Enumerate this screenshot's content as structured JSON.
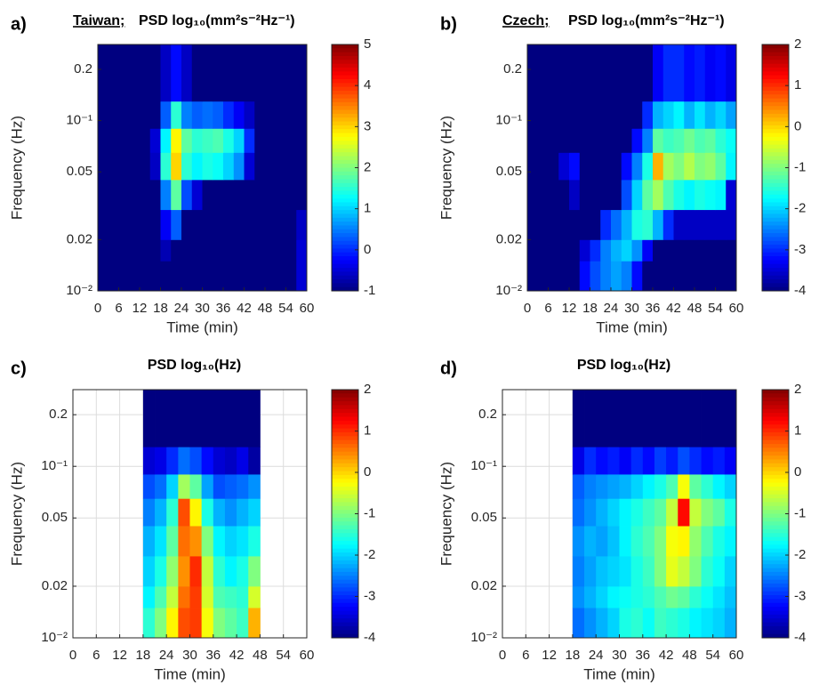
{
  "chart_data": [
    {
      "type": "heatmap",
      "panel_label": "a)",
      "site": "Taiwan;",
      "title": "PSD log₁₀(mm²s⁻²Hz⁻¹)",
      "xlabel": "Time (min)",
      "ylabel": "Frequency (Hz)",
      "xlim": [
        0,
        60
      ],
      "xticks": [
        0,
        6,
        12,
        18,
        24,
        30,
        36,
        42,
        48,
        54,
        60
      ],
      "ylim": [
        0.01,
        0.28
      ],
      "ylog": true,
      "yticks": [
        {
          "value": 0.01,
          "label": "10⁻²"
        },
        0.02,
        0.05,
        {
          "value": 0.1,
          "label": "10⁻¹"
        },
        0.2
      ],
      "grid": false,
      "colormap": "jet",
      "clim": [
        -1,
        5
      ],
      "cticks": [
        -1,
        0,
        1,
        2,
        3,
        4,
        5
      ],
      "xbins": [
        0,
        3,
        6,
        9,
        12,
        15,
        18,
        21,
        24,
        27,
        30,
        33,
        36,
        39,
        42,
        45,
        48,
        51,
        54,
        57,
        60
      ],
      "ybins": [
        0.01,
        0.015,
        0.02,
        0.03,
        0.045,
        0.065,
        0.09,
        0.13,
        0.28
      ],
      "z": [
        [
          -1,
          -1,
          -1,
          -1,
          -1,
          -1,
          -1,
          -1,
          -1,
          -1,
          -1,
          -1,
          -1,
          -1,
          -1,
          -1,
          -1,
          -1,
          -1,
          -0.5
        ],
        [
          -1,
          -1,
          -1,
          -1,
          -1,
          -1,
          -0.7,
          -1,
          -1,
          -1,
          -1,
          -1,
          -1,
          -1,
          -1,
          -1,
          -1,
          -1,
          -1,
          -0.5
        ],
        [
          -1,
          -1,
          -1,
          -1,
          -1,
          -1,
          -0.3,
          0.3,
          -1,
          -1,
          -1,
          -1,
          -1,
          -1,
          -1,
          -1,
          -1,
          -1,
          -1,
          -0.6
        ],
        [
          -1,
          -1,
          -1,
          -1,
          -1,
          -1,
          0.5,
          1.8,
          0.2,
          -0.5,
          -1,
          -1,
          -1,
          -1,
          -1,
          -1,
          -1,
          -1,
          -1,
          -1
        ],
        [
          -1,
          -1,
          -1,
          -1,
          -1,
          -0.6,
          1.5,
          3.0,
          1.5,
          1.2,
          1.4,
          1.3,
          1.0,
          0.6,
          -0.5,
          -1,
          -1,
          -1,
          -1,
          -1
        ],
        [
          -1,
          -1,
          -1,
          -1,
          -1,
          -0.5,
          1.2,
          2.8,
          1.8,
          1.5,
          1.6,
          1.7,
          1.4,
          1.0,
          0,
          -1,
          -1,
          -1,
          -1,
          -1
        ],
        [
          -1,
          -1,
          -1,
          -1,
          -1,
          -1,
          0.3,
          1.5,
          0.5,
          0.3,
          0.4,
          0.3,
          0,
          -0.3,
          -0.6,
          -1,
          -1,
          -1,
          -1,
          -1
        ],
        [
          -1,
          -1,
          -1,
          -1,
          -1,
          -1,
          -0.6,
          -0.2,
          -0.6,
          -1,
          -1,
          -1,
          -1,
          -1,
          -1,
          -1,
          -1,
          -1,
          -1,
          -1
        ]
      ]
    },
    {
      "type": "heatmap",
      "panel_label": "b)",
      "site": "Czech;",
      "title": "PSD log₁₀(mm²s⁻²Hz⁻¹)",
      "xlabel": "Time (min)",
      "ylabel": "Frequency (Hz)",
      "xlim": [
        0,
        60
      ],
      "xticks": [
        0,
        6,
        12,
        18,
        24,
        30,
        36,
        42,
        48,
        54,
        60
      ],
      "ylim": [
        0.01,
        0.28
      ],
      "ylog": true,
      "yticks": [
        {
          "value": 0.01,
          "label": "10⁻²"
        },
        0.02,
        0.05,
        {
          "value": 0.1,
          "label": "10⁻¹"
        },
        0.2
      ],
      "grid": false,
      "colormap": "jet",
      "clim": [
        -4,
        2
      ],
      "cticks": [
        -4,
        -3,
        -2,
        -1,
        0,
        1,
        2
      ],
      "xbins": [
        0,
        3,
        6,
        9,
        12,
        15,
        18,
        21,
        24,
        27,
        30,
        33,
        36,
        39,
        42,
        45,
        48,
        51,
        54,
        57,
        60
      ],
      "ybins": [
        0.01,
        0.015,
        0.02,
        0.03,
        0.045,
        0.065,
        0.09,
        0.13,
        0.28
      ],
      "z": [
        [
          -4,
          -4,
          -4,
          -4,
          -4,
          -3.2,
          -2.8,
          -2.5,
          -2.3,
          -2.5,
          -3.2,
          -4,
          -4,
          -4,
          -4,
          -4,
          -4,
          -4,
          -4,
          -4
        ],
        [
          -4,
          -4,
          -4,
          -4,
          -4,
          -3.5,
          -3,
          -2.5,
          -2.2,
          -2,
          -2.4,
          -3.3,
          -4,
          -4,
          -4,
          -4,
          -4,
          -4,
          -4,
          -4
        ],
        [
          -4,
          -4,
          -4,
          -4,
          -4,
          -4,
          -4,
          -3,
          -2.6,
          -2.2,
          -1.6,
          -1.5,
          -2.2,
          -3,
          -3.6,
          -3.6,
          -3.6,
          -3.6,
          -3.6,
          -3.6
        ],
        [
          -4,
          -4,
          -4,
          -4,
          -3.6,
          -4,
          -4,
          -4,
          -4,
          -2.8,
          -2,
          -1.2,
          -0.8,
          -1.3,
          -1.6,
          -1.8,
          -1.6,
          -1.7,
          -1.8,
          -3.5
        ],
        [
          -4,
          -4,
          -4,
          -3.5,
          -3.2,
          -4,
          -4,
          -4,
          -4,
          -3.2,
          -2.5,
          -1.6,
          0.2,
          -0.8,
          -1,
          -0.7,
          -1,
          -0.9,
          -1.2,
          -1.8
        ],
        [
          -4,
          -4,
          -4,
          -4,
          -4,
          -4,
          -4,
          -4,
          -4,
          -4,
          -3.2,
          -2.5,
          -1.2,
          -1.4,
          -1.3,
          -1.1,
          -1.3,
          -1.2,
          -1.5,
          -1.7
        ],
        [
          -4,
          -4,
          -4,
          -4,
          -4,
          -4,
          -4,
          -4,
          -4,
          -4,
          -4,
          -3,
          -2.2,
          -2,
          -1.8,
          -2.2,
          -1.9,
          -2.2,
          -2,
          -2.3
        ],
        [
          -4,
          -4,
          -4,
          -4,
          -4,
          -4,
          -4,
          -4,
          -4,
          -4,
          -4,
          -4,
          -3.3,
          -3,
          -3,
          -3.2,
          -3.1,
          -3.3,
          -3.2,
          -3.4
        ]
      ]
    },
    {
      "type": "heatmap",
      "panel_label": "c)",
      "title": "PSD log₁₀(Hz)",
      "xlabel": "Time (min)",
      "ylabel": "Frequency (Hz)",
      "xlim": [
        0,
        60
      ],
      "xticks": [
        0,
        6,
        12,
        18,
        24,
        30,
        36,
        42,
        48,
        54,
        60
      ],
      "ylim": [
        0.01,
        0.28
      ],
      "ylog": true,
      "yticks": [
        {
          "value": 0.01,
          "label": "10⁻²"
        },
        0.02,
        0.05,
        {
          "value": 0.1,
          "label": "10⁻¹"
        },
        0.2
      ],
      "grid": true,
      "colormap": "jet",
      "clim": [
        -4,
        2
      ],
      "cticks": [
        -4,
        -3,
        -2,
        -1,
        0,
        1,
        2
      ],
      "xbins": [
        0,
        3,
        6,
        9,
        12,
        15,
        18,
        21,
        24,
        27,
        30,
        33,
        36,
        39,
        42,
        45,
        48,
        51,
        54,
        57,
        60
      ],
      "ybins": [
        0.01,
        0.015,
        0.02,
        0.03,
        0.045,
        0.065,
        0.09,
        0.13,
        0.28
      ],
      "z": [
        [
          null,
          null,
          null,
          null,
          null,
          null,
          -1.5,
          -1.0,
          -0.2,
          0.8,
          0.9,
          -0.3,
          -1,
          -1.2,
          -1.4,
          0.2,
          null,
          null,
          null,
          null
        ],
        [
          null,
          null,
          null,
          null,
          null,
          null,
          -1.8,
          -1.3,
          -0.6,
          0.6,
          0.9,
          -0.5,
          -1.3,
          -1.4,
          -1.5,
          -0.5,
          null,
          null,
          null,
          null
        ],
        [
          null,
          null,
          null,
          null,
          null,
          null,
          -2,
          -1.6,
          -0.9,
          0.4,
          1.0,
          -0.6,
          -1.5,
          -1.8,
          -1.6,
          -1,
          null,
          null,
          null,
          null
        ],
        [
          null,
          null,
          null,
          null,
          null,
          null,
          -2.2,
          -1.9,
          -1.2,
          0.6,
          0.4,
          -1.0,
          -1.8,
          -2.0,
          -1.9,
          -1.6,
          null,
          null,
          null,
          null
        ],
        [
          null,
          null,
          null,
          null,
          null,
          null,
          -2.5,
          -2.2,
          -1.5,
          0.8,
          -0.2,
          -1.6,
          -2.2,
          -2.4,
          -2.2,
          -2,
          null,
          null,
          null,
          null
        ],
        [
          null,
          null,
          null,
          null,
          null,
          null,
          -2.8,
          -2.6,
          -2.0,
          -0.8,
          -1.2,
          -2.3,
          -2.8,
          -2.7,
          -2.6,
          -2.4,
          null,
          null,
          null,
          null
        ],
        [
          null,
          null,
          null,
          null,
          null,
          null,
          -3.5,
          -3.4,
          -3.0,
          -2.6,
          -2.8,
          -3.2,
          -3.5,
          -3.6,
          -3.4,
          -3.8,
          null,
          null,
          null,
          null
        ],
        [
          null,
          null,
          null,
          null,
          null,
          null,
          -4,
          -4,
          -4,
          -4,
          -4,
          -4,
          -4,
          -4,
          -4,
          -4,
          null,
          null,
          null,
          null
        ]
      ]
    },
    {
      "type": "heatmap",
      "panel_label": "d)",
      "title": "PSD log₁₀(Hz)",
      "xlabel": "Time (min)",
      "ylabel": "Frequency (Hz)",
      "xlim": [
        0,
        60
      ],
      "xticks": [
        0,
        6,
        12,
        18,
        24,
        30,
        36,
        42,
        48,
        54,
        60
      ],
      "ylim": [
        0.01,
        0.28
      ],
      "ylog": true,
      "yticks": [
        {
          "value": 0.01,
          "label": "10⁻²"
        },
        0.02,
        0.05,
        {
          "value": 0.1,
          "label": "10⁻¹"
        },
        0.2
      ],
      "grid": true,
      "colormap": "jet",
      "clim": [
        -4,
        2
      ],
      "cticks": [
        -4,
        -3,
        -2,
        -1,
        0,
        1,
        2
      ],
      "xbins": [
        0,
        3,
        6,
        9,
        12,
        15,
        18,
        21,
        24,
        27,
        30,
        33,
        36,
        39,
        42,
        45,
        48,
        51,
        54,
        57,
        60
      ],
      "ybins": [
        0.01,
        0.015,
        0.02,
        0.03,
        0.045,
        0.065,
        0.09,
        0.13,
        0.28
      ],
      "z": [
        [
          null,
          null,
          null,
          null,
          null,
          null,
          -2.6,
          -2.4,
          -2.2,
          -2.0,
          -1.6,
          -1.5,
          -1.7,
          -1.4,
          -1.5,
          -1.6,
          -1.8,
          -1.9,
          -2.0,
          -2.2
        ],
        [
          null,
          null,
          null,
          null,
          null,
          null,
          -2.4,
          -2.2,
          -2.0,
          -1.8,
          -1.7,
          -1.6,
          -1.5,
          -1.3,
          -1.1,
          -1.2,
          -1.5,
          -1.7,
          -1.9,
          -2.1
        ],
        [
          null,
          null,
          null,
          null,
          null,
          null,
          -2.5,
          -2.3,
          -2.1,
          -2.0,
          -1.9,
          -1.6,
          -1.4,
          -1.0,
          -0.4,
          -0.6,
          -1.0,
          -1.5,
          -1.7,
          -2.0
        ],
        [
          null,
          null,
          null,
          null,
          null,
          null,
          -2.4,
          -2.2,
          -2.3,
          -2.1,
          -1.8,
          -1.5,
          -1.3,
          -1.0,
          -0.3,
          -0.2,
          -0.9,
          -1.3,
          -1.6,
          -1.8
        ],
        [
          null,
          null,
          null,
          null,
          null,
          null,
          -2.6,
          -2.4,
          -2.2,
          -2.0,
          -1.8,
          -1.6,
          -1.4,
          -1.2,
          -0.6,
          1.2,
          -0.6,
          -1.0,
          -1.2,
          -1.6
        ],
        [
          null,
          null,
          null,
          null,
          null,
          null,
          -2.7,
          -2.5,
          -2.4,
          -2.3,
          -2.2,
          -2.0,
          -1.8,
          -1.6,
          -1.3,
          -0.3,
          -1.2,
          -1.5,
          -1.8,
          -2.0
        ],
        [
          null,
          null,
          null,
          null,
          null,
          null,
          -3.4,
          -3.0,
          -3.2,
          -3.1,
          -3.3,
          -3.0,
          -3.2,
          -2.9,
          -3.1,
          -2.8,
          -3.0,
          -3.2,
          -3.1,
          -3.3
        ],
        [
          null,
          null,
          null,
          null,
          null,
          null,
          -4,
          -4,
          -4,
          -4,
          -4,
          -4,
          -4,
          -4,
          -4,
          -4,
          -4,
          -4,
          -4,
          -4
        ]
      ]
    }
  ]
}
